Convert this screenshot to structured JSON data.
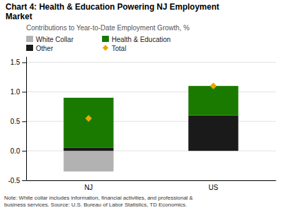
{
  "chart_data": {
    "type": "bar",
    "title": "Chart 4: Health & Education Powering NJ Employment\nMarket",
    "subtitle": "Contributions to Year-to-Date Employment Growth, %",
    "note": "Note: White collar includes information, financial activities, and professional &\nbusiness services. Source: U.S. Bureau of Labor Statistics, TD Economics.",
    "categories": [
      "NJ",
      "US"
    ],
    "series": [
      {
        "name": "White Collar",
        "type": "bar",
        "color": "#b2b2b2",
        "values": [
          -0.35,
          0.0
        ]
      },
      {
        "name": "Other",
        "type": "bar",
        "color": "#1a1a1a",
        "values": [
          0.05,
          0.6
        ]
      },
      {
        "name": "Health & Education",
        "type": "bar",
        "color": "#1a7a00",
        "values": [
          0.85,
          0.5
        ]
      },
      {
        "name": "Total",
        "type": "scatter",
        "marker": "diamond",
        "color": "#e8a800",
        "values": [
          0.55,
          1.1
        ]
      }
    ],
    "stacked": true,
    "ylim": [
      -0.5,
      1.6
    ],
    "yticks": [
      -0.5,
      {
        "value": 0,
        "label": "0.0"
      },
      0.5,
      {
        "value": 1,
        "label": "1.0"
      },
      1.5
    ],
    "grid": true,
    "legend": "top"
  }
}
